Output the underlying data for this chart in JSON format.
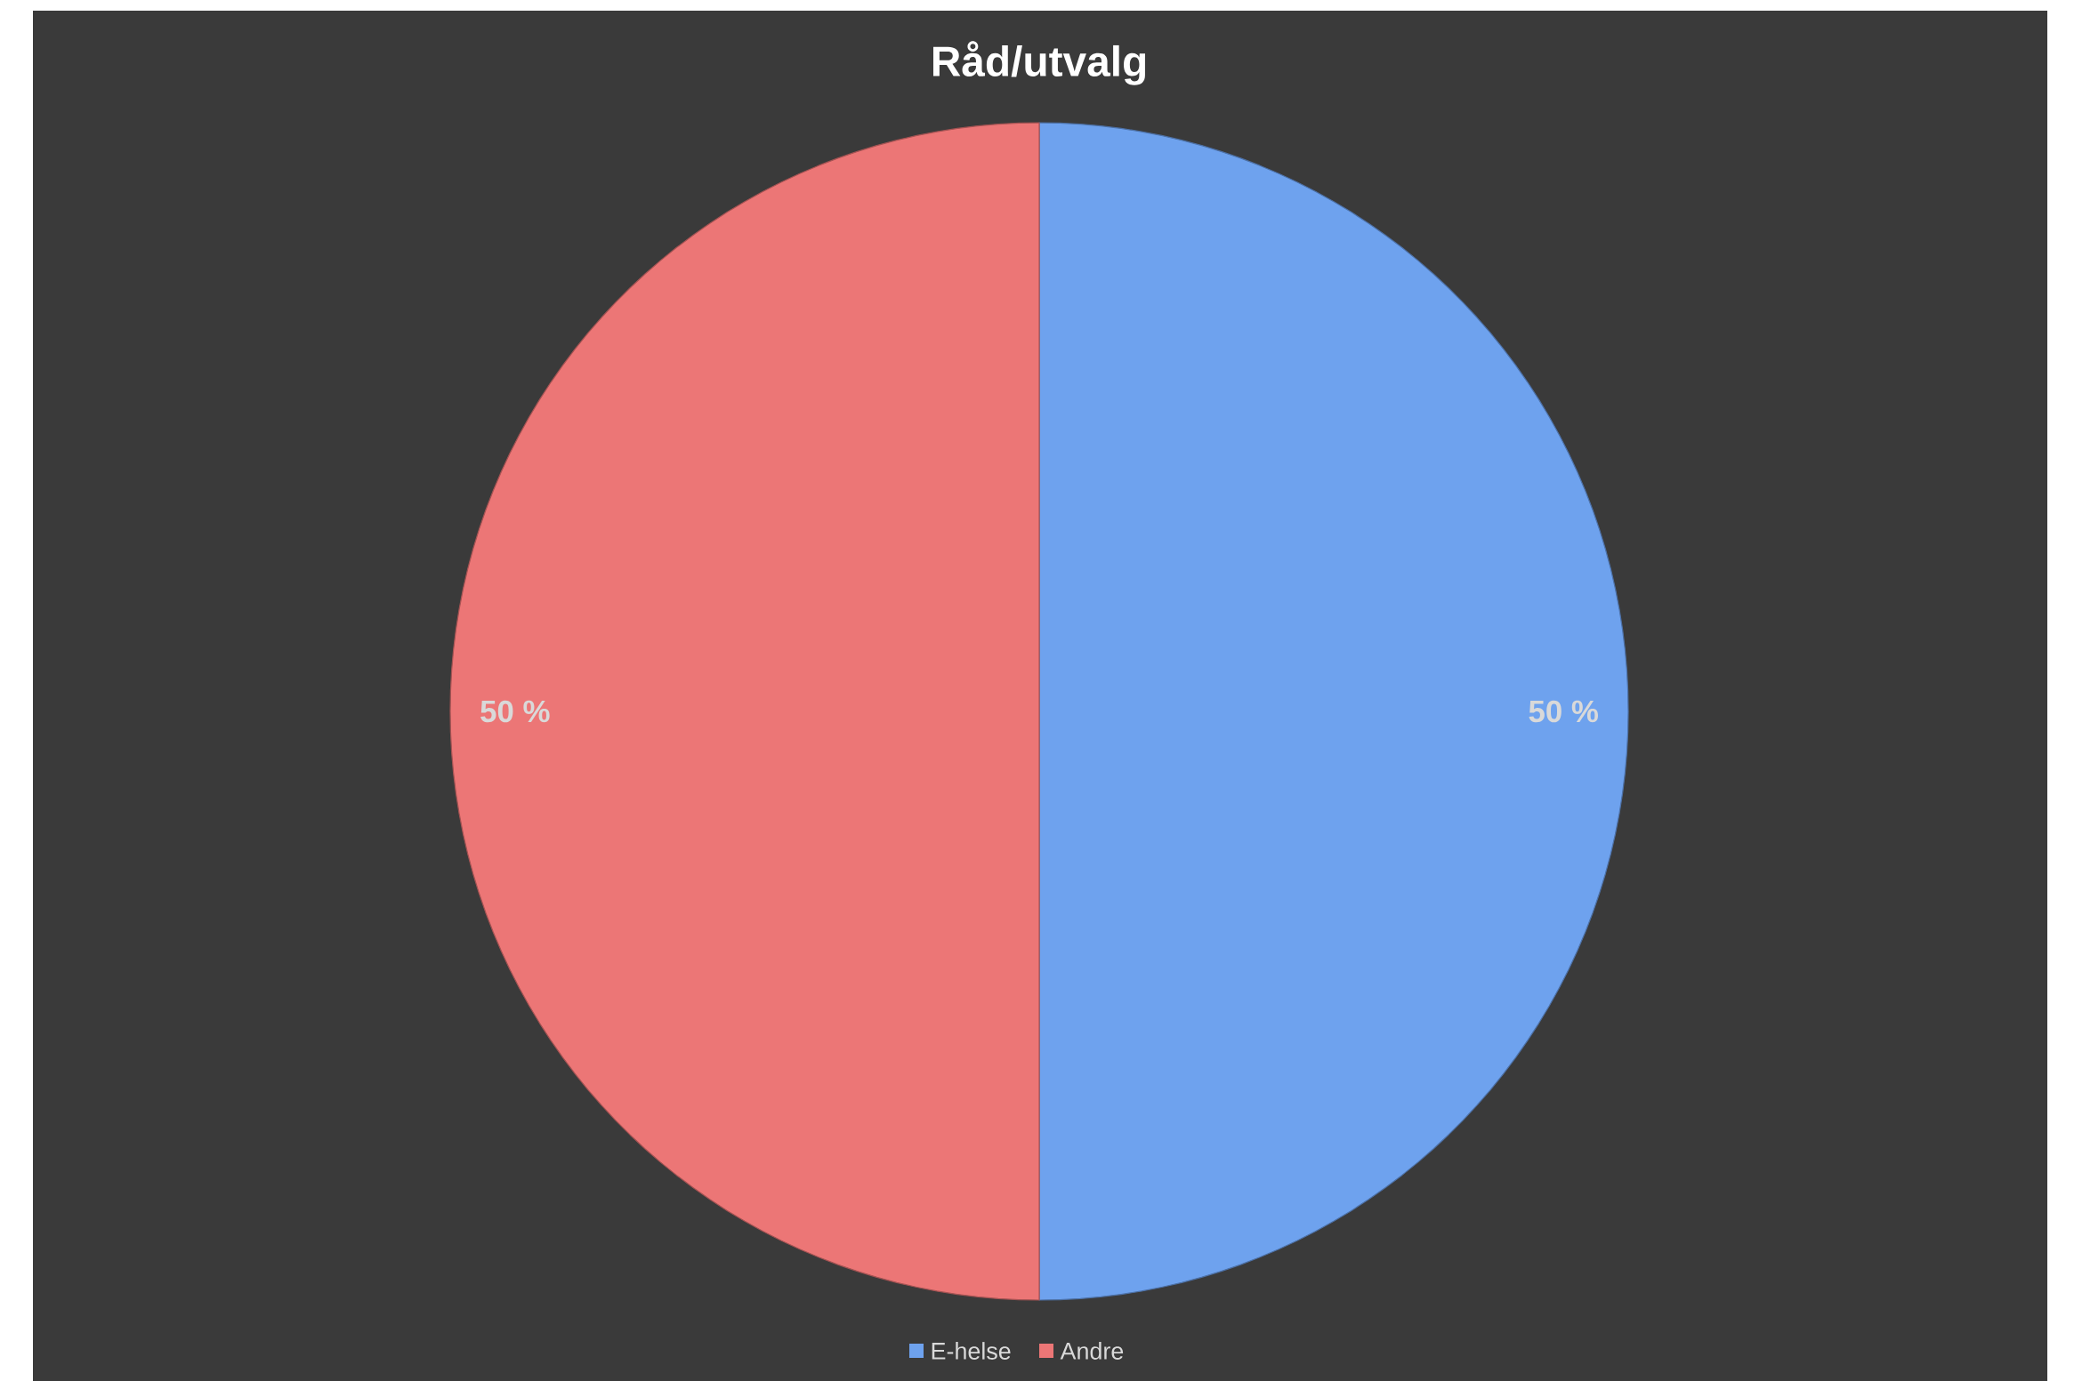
{
  "chart_data": {
    "type": "pie",
    "title": "Råd/utvalg",
    "categories": [
      "E-helse",
      "Andre"
    ],
    "values": [
      50,
      50
    ],
    "colors": [
      "#6ea2ee",
      "#ec7676"
    ],
    "value_labels": [
      "50 %",
      "50 %"
    ],
    "legend": "bottom"
  }
}
